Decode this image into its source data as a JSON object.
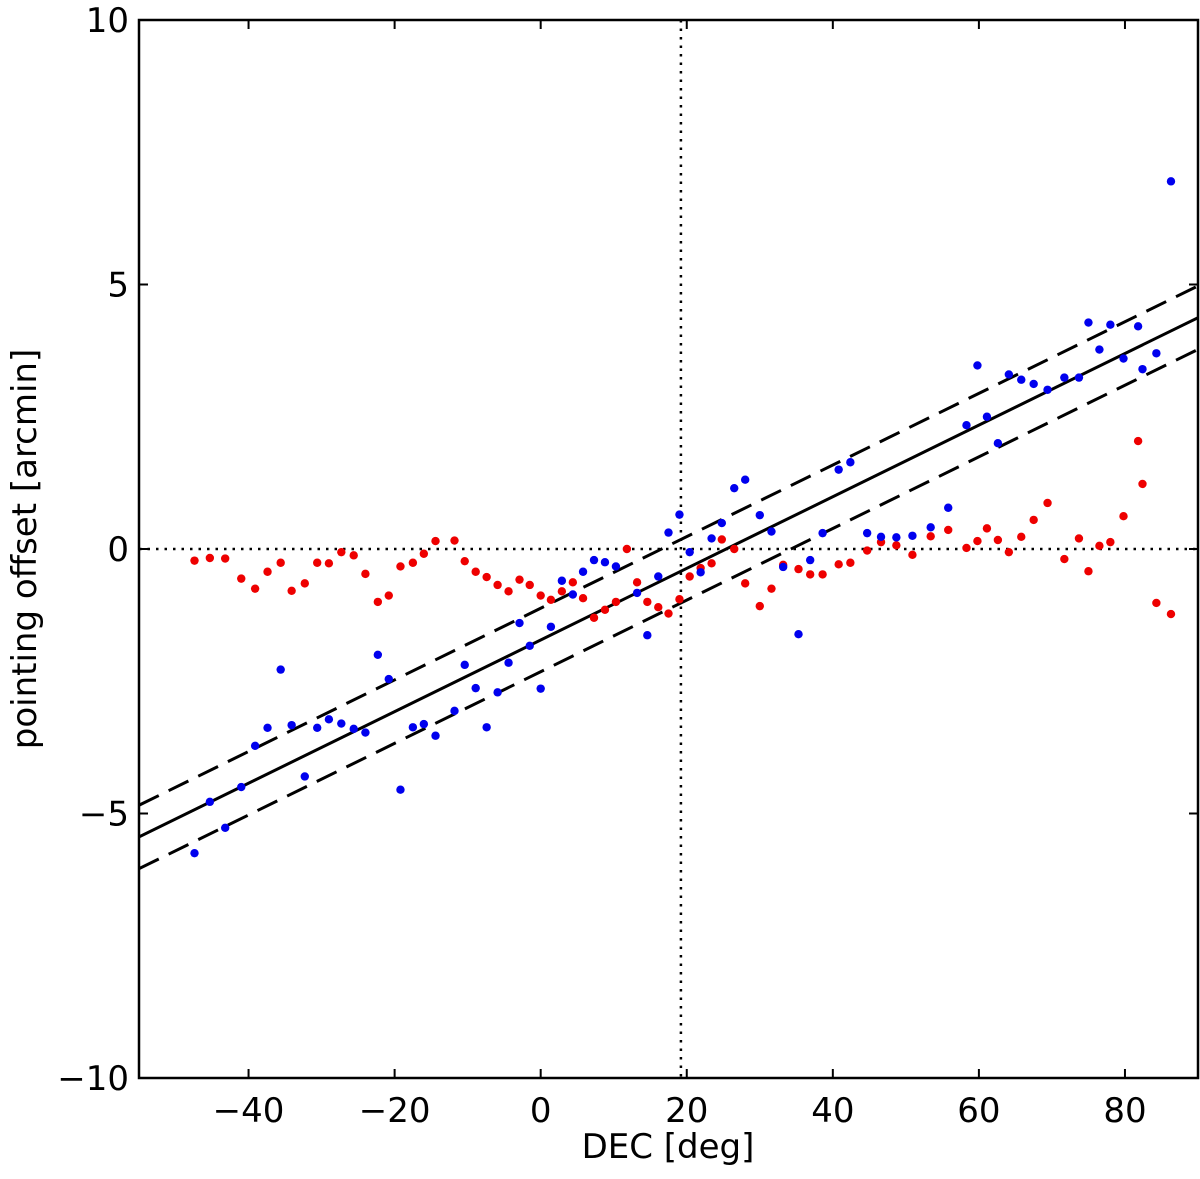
{
  "chart_data": {
    "type": "scatter",
    "xlabel": "DEC [deg]",
    "ylabel": "pointing offset [arcmin]",
    "xlim": [
      -55,
      90
    ],
    "ylim": [
      -10,
      10
    ],
    "x_ticks": [
      -40,
      -20,
      0,
      20,
      40,
      60,
      80
    ],
    "x_tick_labels": [
      "−40",
      "−20",
      "0",
      "20",
      "40",
      "60",
      "80"
    ],
    "y_ticks": [
      -10,
      -5,
      0,
      5,
      10
    ],
    "y_tick_labels": [
      "−10",
      "−5",
      "0",
      "5",
      "10"
    ],
    "grid": false,
    "colors": {
      "blue": "#0000ee",
      "red": "#ee0000",
      "line": "#000000"
    },
    "reference_lines": {
      "vertical_x": 19.2,
      "horizontal_y": 0,
      "style": "dotted"
    },
    "fit": {
      "slope": 0.0677,
      "intercept": -1.72,
      "band_offset": 0.6
    },
    "series": [
      {
        "color": "blue",
        "points": [
          [
            -47.4,
            -5.75
          ],
          [
            -45.3,
            -4.78
          ],
          [
            -43.2,
            -5.27
          ],
          [
            -41.0,
            -4.5
          ],
          [
            -39.1,
            -3.72
          ],
          [
            -37.4,
            -3.38
          ],
          [
            -35.6,
            -2.28
          ],
          [
            -34.1,
            -3.33
          ],
          [
            -32.3,
            -4.3
          ],
          [
            -30.6,
            -3.38
          ],
          [
            -29.0,
            -3.22
          ],
          [
            -27.3,
            -3.3
          ],
          [
            -25.6,
            -3.4
          ],
          [
            -24.0,
            -3.47
          ],
          [
            -22.3,
            -2.0
          ],
          [
            -20.8,
            -2.46
          ],
          [
            -19.2,
            -4.55
          ],
          [
            -17.5,
            -3.37
          ],
          [
            -16.0,
            -3.31
          ],
          [
            -14.4,
            -3.53
          ],
          [
            -11.8,
            -3.06
          ],
          [
            -10.4,
            -2.19
          ],
          [
            -8.9,
            -2.63
          ],
          [
            -7.4,
            -3.37
          ],
          [
            -5.9,
            -2.71
          ],
          [
            -4.4,
            -2.15
          ],
          [
            -2.9,
            -1.4
          ],
          [
            -1.5,
            -1.83
          ],
          [
            0.0,
            -2.64
          ],
          [
            1.4,
            -1.47
          ],
          [
            2.9,
            -0.6
          ],
          [
            4.4,
            -0.86
          ],
          [
            5.8,
            -0.43
          ],
          [
            7.3,
            -0.21
          ],
          [
            8.8,
            -0.25
          ],
          [
            10.3,
            -0.33
          ],
          [
            13.2,
            -0.83
          ],
          [
            14.6,
            -1.63
          ],
          [
            16.1,
            -0.52
          ],
          [
            17.5,
            0.31
          ],
          [
            19.0,
            0.65
          ],
          [
            20.4,
            -0.06
          ],
          [
            21.9,
            -0.44
          ],
          [
            23.4,
            0.2
          ],
          [
            24.8,
            0.49
          ],
          [
            26.5,
            1.15
          ],
          [
            28.0,
            1.31
          ],
          [
            30.0,
            0.64
          ],
          [
            31.6,
            0.33
          ],
          [
            33.2,
            -0.34
          ],
          [
            35.3,
            -1.61
          ],
          [
            36.9,
            -0.21
          ],
          [
            38.6,
            0.3
          ],
          [
            40.8,
            1.5
          ],
          [
            42.4,
            1.64
          ],
          [
            44.7,
            0.3
          ],
          [
            46.6,
            0.23
          ],
          [
            48.7,
            0.22
          ],
          [
            50.9,
            0.25
          ],
          [
            53.4,
            0.41
          ],
          [
            55.8,
            0.78
          ],
          [
            58.3,
            2.34
          ],
          [
            59.8,
            3.47
          ],
          [
            61.1,
            2.5
          ],
          [
            62.6,
            2.0
          ],
          [
            64.1,
            3.3
          ],
          [
            65.8,
            3.2
          ],
          [
            67.5,
            3.12
          ],
          [
            69.4,
            3.01
          ],
          [
            71.7,
            3.24
          ],
          [
            73.7,
            3.24
          ],
          [
            75.0,
            4.28
          ],
          [
            76.5,
            3.77
          ],
          [
            78.0,
            4.24
          ],
          [
            79.8,
            3.6
          ],
          [
            81.8,
            4.21
          ],
          [
            82.4,
            3.4
          ],
          [
            84.3,
            3.7
          ],
          [
            86.3,
            6.95
          ]
        ]
      },
      {
        "color": "red",
        "points": [
          [
            -47.4,
            -0.22
          ],
          [
            -45.3,
            -0.17
          ],
          [
            -43.2,
            -0.18
          ],
          [
            -41.0,
            -0.56
          ],
          [
            -39.1,
            -0.75
          ],
          [
            -37.4,
            -0.43
          ],
          [
            -35.6,
            -0.26
          ],
          [
            -34.1,
            -0.79
          ],
          [
            -32.3,
            -0.65
          ],
          [
            -30.6,
            -0.26
          ],
          [
            -29.0,
            -0.27
          ],
          [
            -27.3,
            -0.06
          ],
          [
            -25.6,
            -0.12
          ],
          [
            -24.0,
            -0.47
          ],
          [
            -22.3,
            -1.0
          ],
          [
            -20.8,
            -0.88
          ],
          [
            -19.2,
            -0.33
          ],
          [
            -17.5,
            -0.26
          ],
          [
            -16.0,
            -0.09
          ],
          [
            -14.4,
            0.15
          ],
          [
            -11.8,
            0.16
          ],
          [
            -10.4,
            -0.23
          ],
          [
            -8.9,
            -0.43
          ],
          [
            -7.4,
            -0.53
          ],
          [
            -5.9,
            -0.68
          ],
          [
            -4.4,
            -0.8
          ],
          [
            -2.9,
            -0.58
          ],
          [
            -1.5,
            -0.68
          ],
          [
            0.0,
            -0.88
          ],
          [
            1.4,
            -0.96
          ],
          [
            2.9,
            -0.8
          ],
          [
            4.4,
            -0.63
          ],
          [
            5.8,
            -0.93
          ],
          [
            7.3,
            -1.3
          ],
          [
            8.8,
            -1.15
          ],
          [
            10.3,
            -1.0
          ],
          [
            11.8,
            0.0
          ],
          [
            13.2,
            -0.63
          ],
          [
            14.6,
            -1.0
          ],
          [
            16.1,
            -1.1
          ],
          [
            17.5,
            -1.22
          ],
          [
            19.0,
            -0.95
          ],
          [
            20.4,
            -0.52
          ],
          [
            21.9,
            -0.36
          ],
          [
            23.4,
            -0.27
          ],
          [
            24.8,
            0.18
          ],
          [
            26.5,
            0.0
          ],
          [
            28.0,
            -0.65
          ],
          [
            30.0,
            -1.08
          ],
          [
            31.6,
            -0.75
          ],
          [
            33.2,
            -0.3
          ],
          [
            35.3,
            -0.38
          ],
          [
            36.9,
            -0.48
          ],
          [
            38.6,
            -0.48
          ],
          [
            40.8,
            -0.29
          ],
          [
            42.4,
            -0.26
          ],
          [
            44.7,
            -0.03
          ],
          [
            46.6,
            0.13
          ],
          [
            48.7,
            0.07
          ],
          [
            50.9,
            -0.11
          ],
          [
            53.4,
            0.24
          ],
          [
            55.8,
            0.36
          ],
          [
            58.3,
            0.02
          ],
          [
            59.8,
            0.15
          ],
          [
            61.1,
            0.39
          ],
          [
            62.6,
            0.17
          ],
          [
            64.1,
            -0.06
          ],
          [
            65.8,
            0.23
          ],
          [
            67.5,
            0.55
          ],
          [
            69.4,
            0.87
          ],
          [
            71.7,
            -0.19
          ],
          [
            73.7,
            0.2
          ],
          [
            75.0,
            -0.42
          ],
          [
            76.5,
            0.06
          ],
          [
            78.0,
            0.13
          ],
          [
            79.8,
            0.62
          ],
          [
            81.8,
            2.04
          ],
          [
            82.4,
            1.23
          ],
          [
            84.3,
            -1.02
          ],
          [
            86.3,
            -1.23
          ]
        ]
      }
    ]
  }
}
